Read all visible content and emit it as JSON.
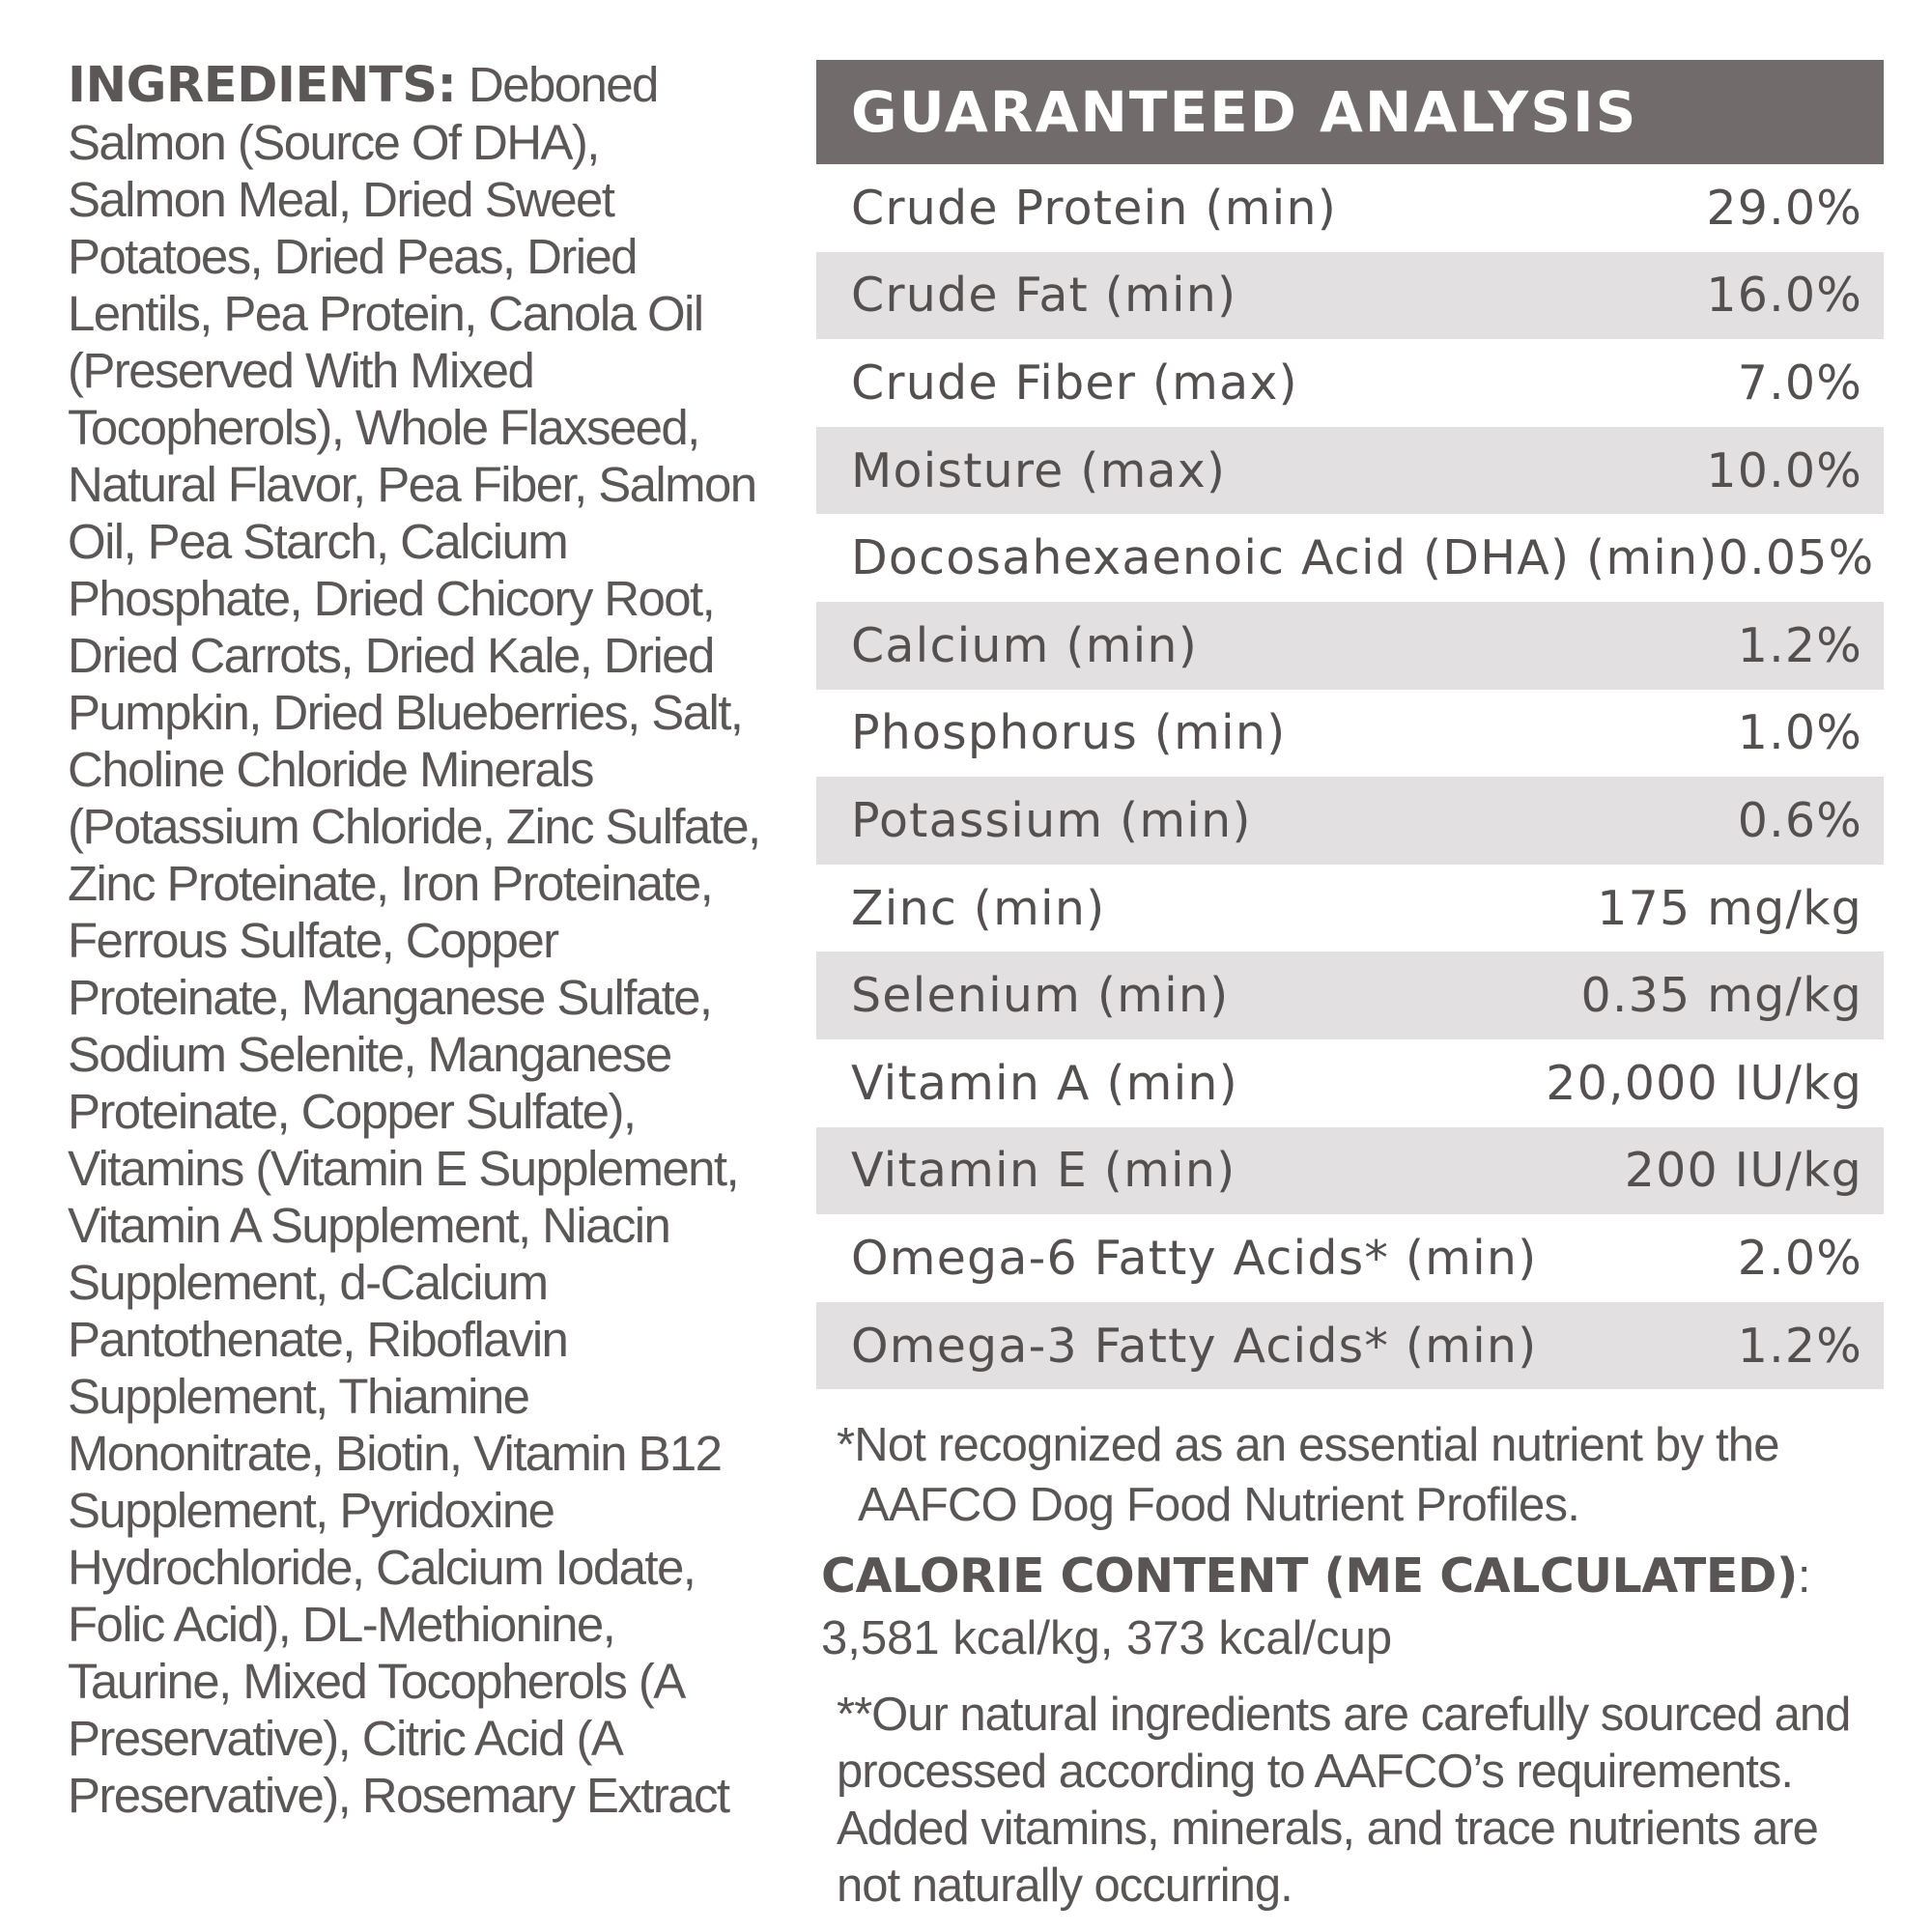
{
  "ingredients": {
    "heading": "INGREDIENTS:",
    "text": "Deboned Salmon (Source Of DHA), Salmon Meal, Dried Sweet Potatoes, Dried Peas, Dried Lentils, Pea Protein, Canola Oil (Preserved With Mixed Tocopherols), Whole Flaxseed, Natural Flavor, Pea Fiber, Salmon Oil, Pea Starch, Calcium Phosphate, Dried Chicory Root, Dried Carrots, Dried Kale, Dried Pumpkin, Dried Blueberries, Salt, Choline Chloride Minerals (Potassium Chloride, Zinc Sulfate, Zinc Proteinate, Iron Proteinate, Ferrous Sulfate, Copper Proteinate, Manganese Sulfate, Sodium Selenite, Manganese Proteinate, Copper Sulfate), Vitamins (Vitamin E Supplement, Vitamin A Supplement, Niacin Supplement, d-Calcium Pantothenate, Riboflavin Supplement, Thiamine Mononitrate, Biotin, Vitamin B12 Supplement, Pyridoxine Hydrochloride, Calcium Iodate, Folic Acid), DL-Methionine, Taurine, Mixed Tocopherols (A Preservative), Citric Acid (A Preservative), Rosemary Extract"
  },
  "analysis": {
    "title": "GUARANTEED ANALYSIS",
    "rows": [
      {
        "label": "Crude Protein (min)",
        "value": "29.0%"
      },
      {
        "label": "Crude Fat (min)",
        "value": "16.0%"
      },
      {
        "label": "Crude Fiber (max)",
        "value": "7.0%"
      },
      {
        "label": "Moisture (max)",
        "value": "10.0%"
      },
      {
        "label": "Docosahexaenoic Acid (DHA) (min)",
        "value": "0.05%"
      },
      {
        "label": "Calcium (min)",
        "value": "1.2%"
      },
      {
        "label": "Phosphorus (min)",
        "value": "1.0%"
      },
      {
        "label": "Potassium (min)",
        "value": "0.6%"
      },
      {
        "label": "Zinc (min)",
        "value": "175 mg/kg"
      },
      {
        "label": "Selenium (min)",
        "value": "0.35 mg/kg"
      },
      {
        "label": "Vitamin A (min)",
        "value": "20,000 IU/kg"
      },
      {
        "label": "Vitamin E (min)",
        "value": "200 IU/kg"
      },
      {
        "label": "Omega-6 Fatty Acids* (min)",
        "value": "2.0%"
      },
      {
        "label": "Omega-3 Fatty Acids* (min)",
        "value": "1.2%"
      }
    ]
  },
  "footnote": {
    "line1": "*Not recognized as an essential nutrient by the",
    "line2": "AAFCO Dog Food Nutrient Profiles."
  },
  "calorie": {
    "heading": "CALORIE CONTENT (ME CALCULATED)",
    "colon": ":",
    "value": "3,581 kcal/kg, 373 kcal/cup"
  },
  "disclaimer": "**Our natural ingredients are carefully sourced and processed according to AAFCO’s requirements. Added vitamins, minerals, and trace nutrients are not naturally occurring."
}
